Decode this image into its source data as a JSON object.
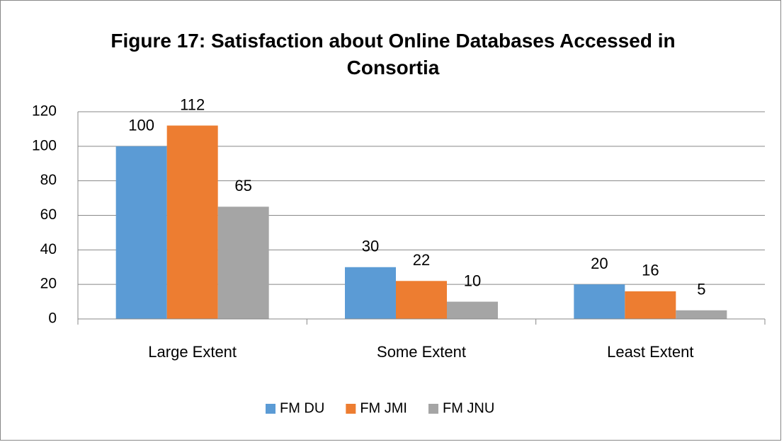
{
  "chart_data": {
    "type": "bar",
    "title": "Figure 17: Satisfaction about Online Databases Accessed in Consortia",
    "categories": [
      "Large Extent",
      "Some Extent",
      "Least Extent"
    ],
    "series": [
      {
        "name": "FM DU",
        "color": "#5b9bd5",
        "values": [
          100,
          30,
          20
        ]
      },
      {
        "name": "FM JMI",
        "color": "#ed7d31",
        "values": [
          112,
          22,
          16
        ]
      },
      {
        "name": "FM JNU",
        "color": "#a5a5a5",
        "values": [
          65,
          10,
          5
        ]
      }
    ],
    "ylim": [
      0,
      120
    ],
    "yticks": [
      0,
      20,
      40,
      60,
      80,
      100,
      120
    ],
    "grid": true,
    "legend": "bottom"
  }
}
